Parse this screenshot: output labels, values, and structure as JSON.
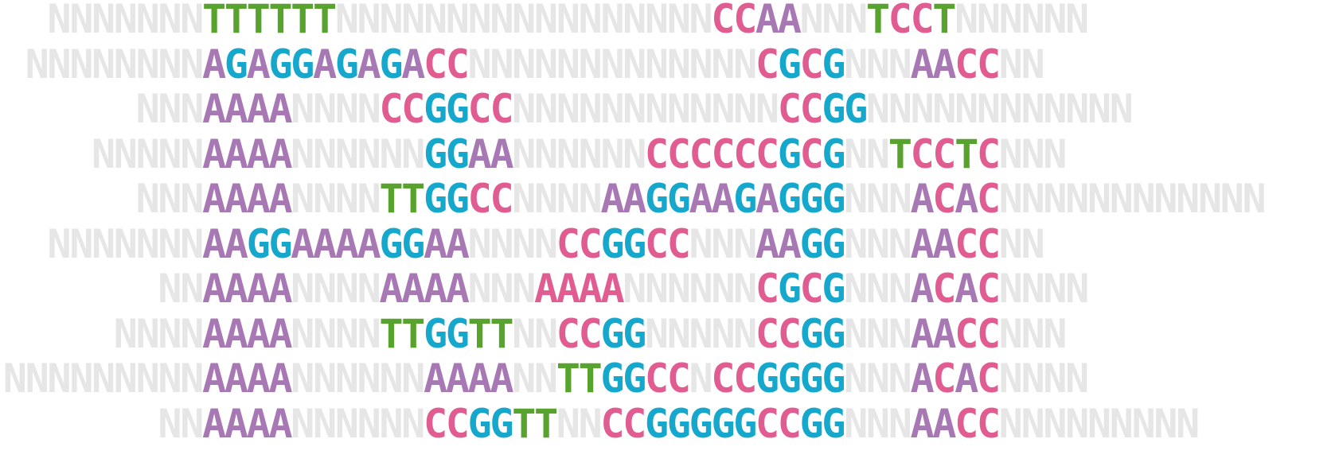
{
  "base_colors": {
    "A": "#a878b4",
    "C": "#e05c91",
    "G": "#16a8cc",
    "T": "#58a32e",
    "N": "#e6e6e6"
  },
  "highlight_color": "#e05c91",
  "rows": [
    "NNNNNNNTTTTTTNNNNNNNNNNNNNNNNNCCAANNNTCCTNNNNNN",
    "NNNNNNNNAGAGGAGAGACCNNNNNNNNNNNNNCGCGNNNAACCNN",
    "NNNAAAANNNNCCGGCCNNNNNNNNNNNNCCGGNNNNNNNNNNNN",
    "NNNNNAAAANNNNNNGGAANNNNNNCCCCCCGCGNNTCCTCNNN",
    "NNNAAAANNNNTTGGCCNNNNAAGGAAGAGGGNNNACACNNNNNNNNNNNN",
    "NNNNNNNAAGGAAAAGGAANNNNCCGGCCNNNAAGGNNNAACCNN",
    "NNAAAANNNNAAAANNNAAAANNNNNNCGCGNNNACACNNNN",
    "NNNNAAAANNNNTTGGTTNNCCGGNNNNNCCGGNNNAACCNNN",
    "NNNNNNNNNAAAANNNNNNAAAANNTTGGCCNCCGGGGNNNACACNNNN",
    "NNAAAANNNNNNCCGGTTNNCCGGGGGCCGGNNNAACCNNNNNNNNN"
  ],
  "highlighted_runs": [
    {
      "row": 6,
      "start": 17,
      "end": 21
    }
  ]
}
